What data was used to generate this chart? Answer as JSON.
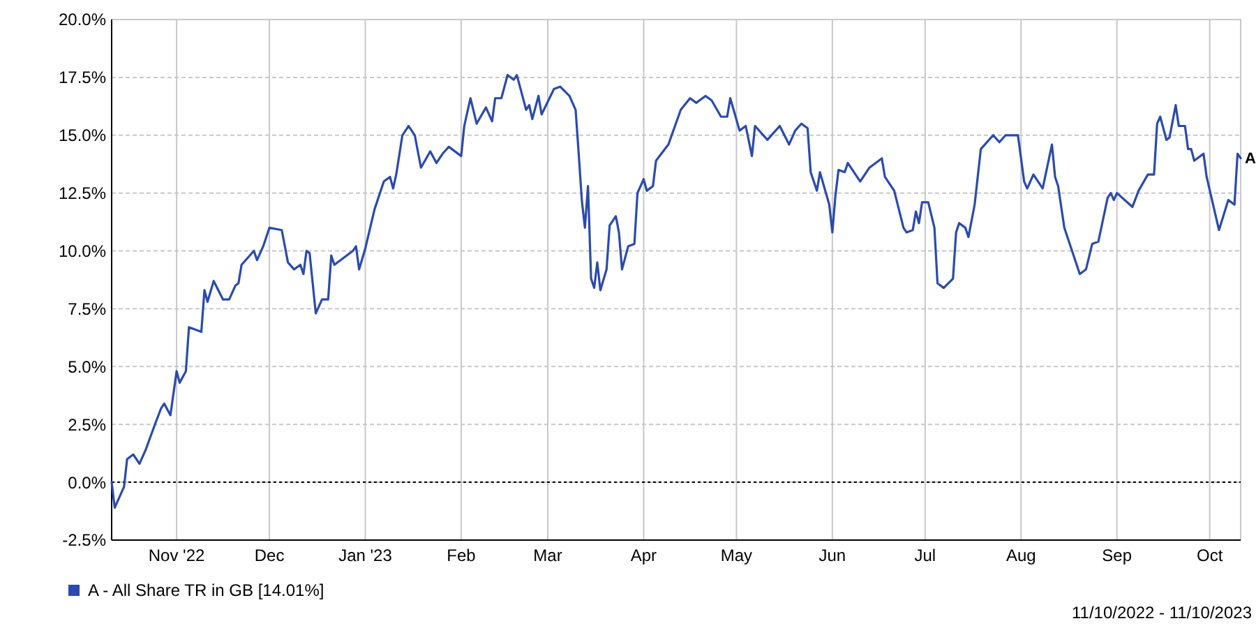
{
  "chart_data": {
    "type": "line",
    "x": [
      "2022-10-11",
      "2022-10-12",
      "2022-10-14",
      "2022-10-15",
      "2022-10-16",
      "2022-10-18",
      "2022-10-20",
      "2022-10-22",
      "2022-10-25",
      "2022-10-27",
      "2022-10-28",
      "2022-10-30",
      "2022-11-01",
      "2022-11-02",
      "2022-11-04",
      "2022-11-05",
      "2022-11-07",
      "2022-11-09",
      "2022-11-10",
      "2022-11-11",
      "2022-11-13",
      "2022-11-16",
      "2022-11-18",
      "2022-11-20",
      "2022-11-21",
      "2022-11-22",
      "2022-11-26",
      "2022-11-27",
      "2022-11-29",
      "2022-12-01",
      "2022-12-05",
      "2022-12-07",
      "2022-12-09",
      "2022-12-11",
      "2022-12-12",
      "2022-12-13",
      "2022-12-14",
      "2022-12-16",
      "2022-12-18",
      "2022-12-20",
      "2022-12-21",
      "2022-12-22",
      "2022-12-28",
      "2022-12-29",
      "2022-12-30",
      "2023-01-01",
      "2023-01-04",
      "2023-01-07",
      "2023-01-09",
      "2023-01-10",
      "2023-01-11",
      "2023-01-13",
      "2023-01-15",
      "2023-01-17",
      "2023-01-19",
      "2023-01-22",
      "2023-01-24",
      "2023-01-26",
      "2023-01-28",
      "2023-02-01",
      "2023-02-02",
      "2023-02-04",
      "2023-02-06",
      "2023-02-09",
      "2023-02-11",
      "2023-02-12",
      "2023-02-14",
      "2023-02-16",
      "2023-02-18",
      "2023-02-19",
      "2023-02-22",
      "2023-02-23",
      "2023-02-24",
      "2023-02-26",
      "2023-02-27",
      "2023-03-03",
      "2023-03-05",
      "2023-03-08",
      "2023-03-10",
      "2023-03-11",
      "2023-03-12",
      "2023-03-13",
      "2023-03-14",
      "2023-03-15",
      "2023-03-16",
      "2023-03-17",
      "2023-03-18",
      "2023-03-20",
      "2023-03-21",
      "2023-03-23",
      "2023-03-24",
      "2023-03-25",
      "2023-03-27",
      "2023-03-29",
      "2023-03-30",
      "2023-04-01",
      "2023-04-02",
      "2023-04-04",
      "2023-04-05",
      "2023-04-09",
      "2023-04-13",
      "2023-04-16",
      "2023-04-18",
      "2023-04-21",
      "2023-04-23",
      "2023-04-26",
      "2023-04-28",
      "2023-04-29",
      "2023-05-02",
      "2023-05-04",
      "2023-05-06",
      "2023-05-07",
      "2023-05-11",
      "2023-05-15",
      "2023-05-18",
      "2023-05-20",
      "2023-05-22",
      "2023-05-24",
      "2023-05-25",
      "2023-05-27",
      "2023-05-28",
      "2023-05-31",
      "2023-06-01",
      "2023-06-02",
      "2023-06-03",
      "2023-06-05",
      "2023-06-06",
      "2023-06-10",
      "2023-06-13",
      "2023-06-17",
      "2023-06-18",
      "2023-06-21",
      "2023-06-24",
      "2023-06-25",
      "2023-06-27",
      "2023-06-28",
      "2023-06-29",
      "2023-06-30",
      "2023-07-02",
      "2023-07-04",
      "2023-07-05",
      "2023-07-07",
      "2023-07-10",
      "2023-07-11",
      "2023-07-12",
      "2023-07-14",
      "2023-07-15",
      "2023-07-17",
      "2023-07-19",
      "2023-07-23",
      "2023-07-25",
      "2023-07-27",
      "2023-07-31",
      "2023-08-02",
      "2023-08-03",
      "2023-08-05",
      "2023-08-08",
      "2023-08-11",
      "2023-08-12",
      "2023-08-13",
      "2023-08-15",
      "2023-08-20",
      "2023-08-22",
      "2023-08-24",
      "2023-08-26",
      "2023-08-29",
      "2023-08-30",
      "2023-08-31",
      "2023-09-01",
      "2023-09-06",
      "2023-09-08",
      "2023-09-11",
      "2023-09-13",
      "2023-09-14",
      "2023-09-15",
      "2023-09-17",
      "2023-09-18",
      "2023-09-20",
      "2023-09-21",
      "2023-09-23",
      "2023-09-24",
      "2023-09-25",
      "2023-09-26",
      "2023-09-29",
      "2023-09-30",
      "2023-10-04",
      "2023-10-07",
      "2023-10-09",
      "2023-10-10",
      "2023-10-11"
    ],
    "series": [
      {
        "name": "A - All Share TR in GB [14.01%]",
        "color": "#2a4aad",
        "values": [
          0.0,
          -1.1,
          -0.5,
          -0.2,
          1.0,
          1.2,
          0.8,
          1.4,
          2.5,
          3.2,
          3.4,
          2.9,
          4.8,
          4.3,
          4.8,
          6.7,
          6.6,
          6.5,
          8.3,
          7.8,
          8.7,
          7.9,
          7.9,
          8.5,
          8.6,
          9.4,
          10.0,
          9.6,
          10.2,
          11.0,
          10.9,
          9.5,
          9.2,
          9.4,
          9.0,
          10.0,
          9.9,
          7.3,
          7.9,
          7.9,
          9.8,
          9.4,
          10.0,
          10.2,
          9.2,
          10.1,
          11.8,
          13.0,
          13.2,
          12.7,
          13.3,
          15.0,
          15.4,
          15.0,
          13.6,
          14.3,
          13.8,
          14.2,
          14.5,
          14.1,
          15.4,
          16.6,
          15.5,
          16.2,
          15.6,
          16.6,
          16.6,
          17.6,
          17.4,
          17.6,
          16.1,
          16.3,
          15.7,
          16.7,
          15.9,
          17.0,
          17.1,
          16.7,
          16.1,
          14.2,
          12.2,
          11.0,
          12.8,
          8.8,
          8.4,
          9.5,
          8.3,
          9.2,
          11.1,
          11.5,
          10.8,
          9.2,
          10.2,
          10.3,
          12.5,
          13.1,
          12.6,
          12.8,
          13.9,
          14.6,
          16.1,
          16.6,
          16.4,
          16.7,
          16.5,
          15.8,
          15.8,
          16.6,
          15.2,
          15.4,
          14.1,
          15.4,
          14.8,
          15.4,
          14.6,
          15.2,
          15.5,
          15.3,
          13.4,
          12.6,
          13.4,
          12.0,
          10.8,
          12.4,
          13.5,
          13.4,
          13.8,
          13.0,
          13.6,
          14.0,
          13.2,
          12.6,
          11.0,
          10.8,
          10.9,
          11.7,
          11.2,
          12.1,
          12.1,
          11.0,
          8.6,
          8.4,
          8.8,
          10.8,
          11.2,
          11.0,
          10.6,
          12.0,
          14.4,
          15.0,
          14.7,
          15.0,
          15.0,
          13.0,
          12.7,
          13.3,
          12.7,
          14.6,
          13.2,
          12.8,
          11.0,
          9.0,
          9.2,
          10.3,
          10.4,
          12.3,
          12.5,
          12.2,
          12.5,
          11.9,
          12.6,
          13.3,
          13.3,
          15.5,
          15.8,
          14.8,
          14.9,
          16.3,
          15.4,
          15.4,
          14.4,
          14.4,
          13.9,
          14.2,
          13.2,
          10.9,
          12.2,
          12.0,
          14.2,
          14.01
        ]
      }
    ],
    "xlim": [
      "2022-10-11",
      "2023-10-11"
    ],
    "xticks": [
      {
        "value": "2022-11-01",
        "label": "Nov '22"
      },
      {
        "value": "2022-12-01",
        "label": "Dec"
      },
      {
        "value": "2023-01-01",
        "label": "Jan '23"
      },
      {
        "value": "2023-02-01",
        "label": "Feb"
      },
      {
        "value": "2023-03-01",
        "label": "Mar"
      },
      {
        "value": "2023-04-01",
        "label": "Apr"
      },
      {
        "value": "2023-05-01",
        "label": "May"
      },
      {
        "value": "2023-06-01",
        "label": "Jun"
      },
      {
        "value": "2023-07-01",
        "label": "Jul"
      },
      {
        "value": "2023-08-01",
        "label": "Aug"
      },
      {
        "value": "2023-09-01",
        "label": "Sep"
      },
      {
        "value": "2023-10-01",
        "label": "Oct"
      }
    ],
    "ylim": [
      -2.5,
      20
    ],
    "yticks": [
      {
        "value": -2.5,
        "label": "-2.5%"
      },
      {
        "value": 0,
        "label": "0.0%"
      },
      {
        "value": 2.5,
        "label": "2.5%"
      },
      {
        "value": 5,
        "label": "5.0%"
      },
      {
        "value": 7.5,
        "label": "7.5%"
      },
      {
        "value": 10,
        "label": "10.0%"
      },
      {
        "value": 12.5,
        "label": "12.5%"
      },
      {
        "value": 15,
        "label": "15.0%"
      },
      {
        "value": 17.5,
        "label": "17.5%"
      },
      {
        "value": 20,
        "label": "20.0%"
      }
    ],
    "ref_lines": [
      {
        "axis": "y",
        "value": 0,
        "color": "#000000",
        "line_style": "dotted"
      }
    ],
    "annotations": [
      {
        "text": "A",
        "x": "2023-10-11",
        "y": 14.01
      },
      "11/10/2022 - 11/10/2023"
    ],
    "grid": true,
    "legend": "bottom left",
    "marker": "none",
    "line_style": "solid"
  }
}
